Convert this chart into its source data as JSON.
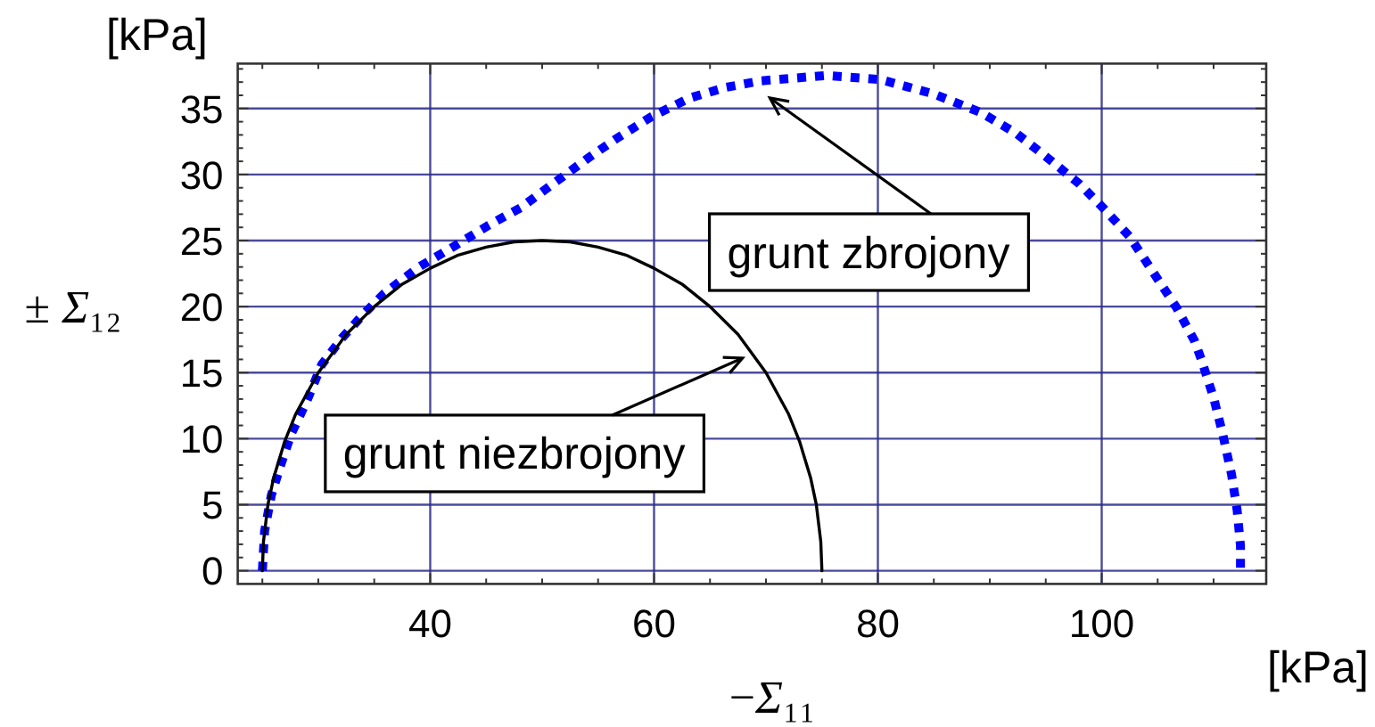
{
  "chart_data": {
    "type": "line",
    "xlabel": "−Σ₁₁",
    "ylabel": "± Σ₁₂",
    "annotations": [
      "grunt zbrojony",
      {
        "text": "grunt niezbrojony",
        "x": 67.9,
        "y": 16.1
      },
      "[kPa]",
      "[kPa]"
    ],
    "xlim": [
      22.8,
      114.7
    ],
    "ylim": [
      -1,
      38.4
    ],
    "xticks": [
      {
        "value": 25,
        "label": null
      },
      {
        "value": 30,
        "label": null
      },
      {
        "value": 35,
        "label": null
      },
      40,
      {
        "value": 45,
        "label": null
      },
      {
        "value": 50,
        "label": null
      },
      {
        "value": 55,
        "label": null
      },
      60,
      {
        "value": 65,
        "label": null
      },
      {
        "value": 70,
        "label": null
      },
      {
        "value": 75,
        "label": null
      },
      80,
      {
        "value": 85,
        "label": null
      },
      {
        "value": 90,
        "label": null
      },
      {
        "value": 95,
        "label": null
      },
      100,
      {
        "value": 105,
        "label": null
      },
      {
        "value": 110,
        "label": null
      }
    ],
    "yticks": [
      0,
      {
        "value": 1,
        "label": null
      },
      {
        "value": 2,
        "label": null
      },
      {
        "value": 3,
        "label": null
      },
      {
        "value": 4,
        "label": null
      },
      5,
      {
        "value": 6,
        "label": null
      },
      {
        "value": 7,
        "label": null
      },
      {
        "value": 8,
        "label": null
      },
      {
        "value": 9,
        "label": null
      },
      10,
      {
        "value": 11,
        "label": null
      },
      {
        "value": 12,
        "label": null
      },
      {
        "value": 13,
        "label": null
      },
      {
        "value": 14,
        "label": null
      },
      15,
      {
        "value": 16,
        "label": null
      },
      {
        "value": 17,
        "label": null
      },
      {
        "value": 18,
        "label": null
      },
      {
        "value": 19,
        "label": null
      },
      20,
      {
        "value": 21,
        "label": null
      },
      {
        "value": 22,
        "label": null
      },
      {
        "value": 23,
        "label": null
      },
      {
        "value": 24,
        "label": null
      },
      25,
      {
        "value": 26,
        "label": null
      },
      {
        "value": 27,
        "label": null
      },
      {
        "value": 28,
        "label": null
      },
      {
        "value": 29,
        "label": null
      },
      30,
      {
        "value": 31,
        "label": null
      },
      {
        "value": 32,
        "label": null
      },
      {
        "value": 33,
        "label": null
      },
      {
        "value": 34,
        "label": null
      },
      35,
      {
        "value": 36,
        "label": null
      },
      {
        "value": 37,
        "label": null
      },
      {
        "value": 38,
        "label": null
      }
    ],
    "grid": true,
    "series": [
      {
        "color": "#0000ff",
        "line_style": "dotted",
        "x": [
          25.0,
          25.2,
          25.8,
          26.6,
          27.6,
          29.0,
          30.3,
          32.1,
          34.0,
          35.9,
          39.0,
          42.2,
          45.1,
          48.1,
          51.3,
          54.2,
          56.6,
          59.8,
          63.2,
          66.4,
          69.6,
          75.4,
          80.2,
          85.0,
          89.2,
          92.4,
          95.1,
          98.0,
          100.1,
          102.5,
          104.6,
          106.7,
          108.3,
          108.9,
          110.0,
          110.8,
          111.6,
          112.1,
          112.4,
          112.4
        ],
        "values": [
          0,
          3.0,
          5.7,
          7.9,
          10.4,
          12.9,
          15.6,
          17.6,
          19.4,
          21.0,
          23.0,
          24.6,
          26.1,
          27.5,
          29.5,
          31.3,
          32.7,
          34.4,
          35.8,
          36.6,
          37.1,
          37.5,
          37.2,
          36.1,
          34.7,
          33.1,
          31.3,
          29.3,
          27.5,
          25.3,
          22.6,
          19.9,
          17.4,
          16.0,
          13.1,
          10.4,
          7.3,
          4.6,
          1.9,
          0
        ]
      },
      {
        "color": "#000000",
        "line_style": "solid",
        "x": [
          25,
          25.1,
          25.5,
          26,
          27,
          28,
          30,
          32.5,
          35,
          37.5,
          40,
          42.5,
          45,
          47.5,
          50,
          52.5,
          55,
          57.5,
          60,
          62.5,
          65,
          67.5,
          70,
          72,
          73,
          74,
          74.5,
          74.9,
          75
        ],
        "values": [
          0,
          2.2,
          5.0,
          7.0,
          9.8,
          11.9,
          15.0,
          17.9,
          20.0,
          21.7,
          22.9,
          23.9,
          24.5,
          24.9,
          25,
          24.9,
          24.5,
          23.9,
          22.9,
          21.7,
          20.0,
          17.9,
          15.0,
          11.9,
          9.8,
          7.0,
          5.0,
          2.2,
          0
        ]
      }
    ]
  }
}
